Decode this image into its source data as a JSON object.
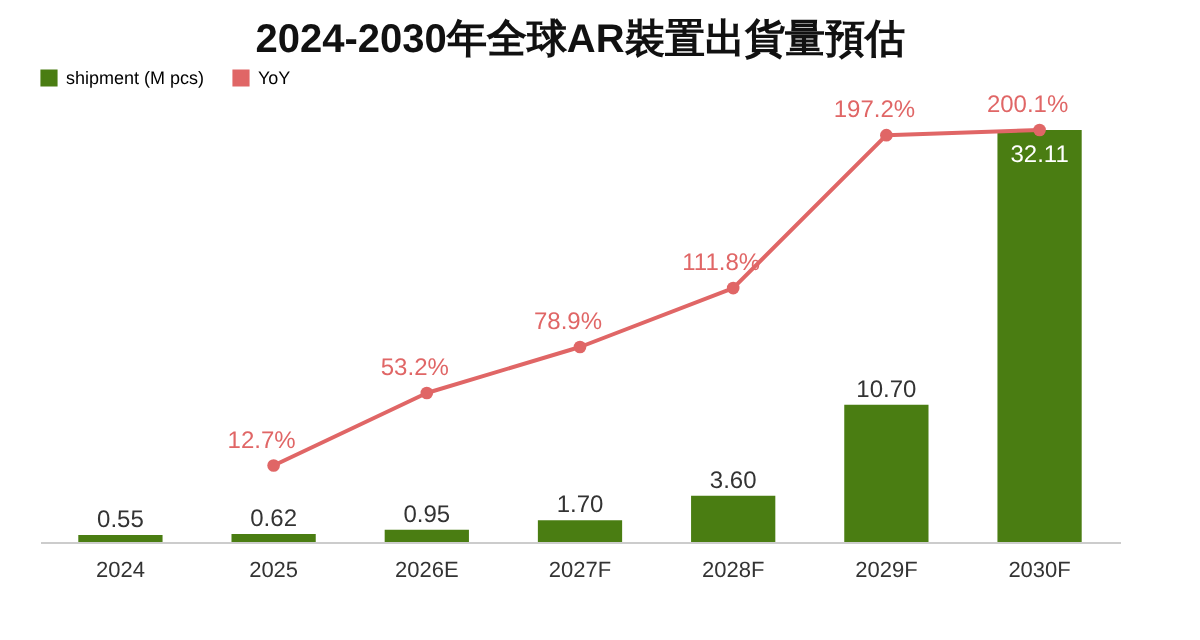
{
  "chart_data": {
    "type": "bar",
    "title": "2024-2030年全球AR裝置出貨量預估",
    "categories": [
      "2024",
      "2025",
      "2026E",
      "2027F",
      "2028F",
      "2029F",
      "2030F"
    ],
    "series": [
      {
        "name": "shipment (M pcs)",
        "color": "#4a7d12",
        "values": [
          0.55,
          0.62,
          0.95,
          1.7,
          3.6,
          10.7,
          32.11
        ],
        "value_labels": [
          "0.55",
          "0.62",
          "0.95",
          "1.70",
          "3.60",
          "10.70",
          "32.11"
        ]
      },
      {
        "name": "YoY",
        "type": "line",
        "axis": "y2",
        "color": "#e06666",
        "marker": "circle",
        "values": [
          null,
          12.7,
          53.2,
          78.9,
          111.8,
          197.2,
          200.1
        ],
        "value_labels": [
          null,
          "12.7%",
          "53.2%",
          "78.9%",
          "111.8%",
          "197.2%",
          "200.1%"
        ]
      }
    ],
    "legend": "top",
    "tick_labels": "x",
    "grid": false
  }
}
